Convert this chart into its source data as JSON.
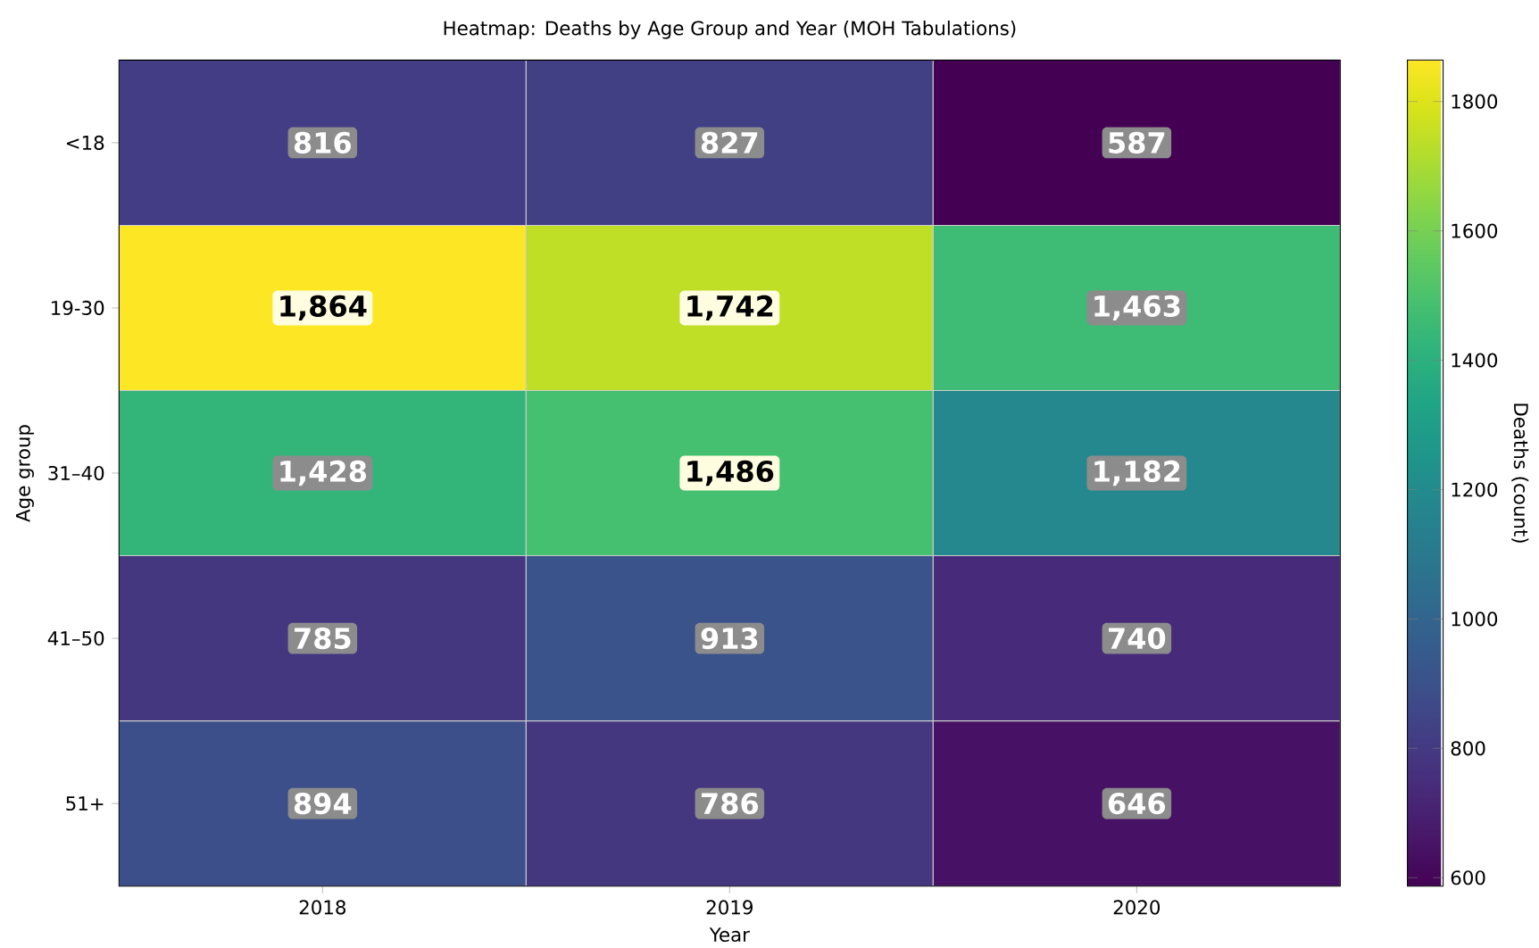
{
  "chart_data": {
    "type": "heatmap",
    "title": "Heatmap: Deaths by Age Group and Year (MOH Tabulations)",
    "xlabel": "Year",
    "ylabel": "Age group",
    "clabel": "Deaths (count)",
    "categories": [
      "2018",
      "2019",
      "2020"
    ],
    "y_categories": [
      "<18",
      "19-30",
      "31–40",
      "41–50",
      "51+"
    ],
    "cells": [
      [
        816,
        827,
        587
      ],
      [
        1864,
        1742,
        1463
      ],
      [
        1428,
        1486,
        1182
      ],
      [
        785,
        913,
        740
      ],
      [
        894,
        786,
        646
      ]
    ],
    "cell_labels": [
      [
        "816",
        "827",
        "587"
      ],
      [
        "1,864",
        "1,742",
        "1,463"
      ],
      [
        "1,428",
        "1,486",
        "1,182"
      ],
      [
        "785",
        "913",
        "740"
      ],
      [
        "894",
        "786",
        "646"
      ]
    ],
    "clim": [
      587,
      1864
    ],
    "cticks": [
      600,
      800,
      1000,
      1200,
      1400,
      1600,
      1800
    ]
  }
}
